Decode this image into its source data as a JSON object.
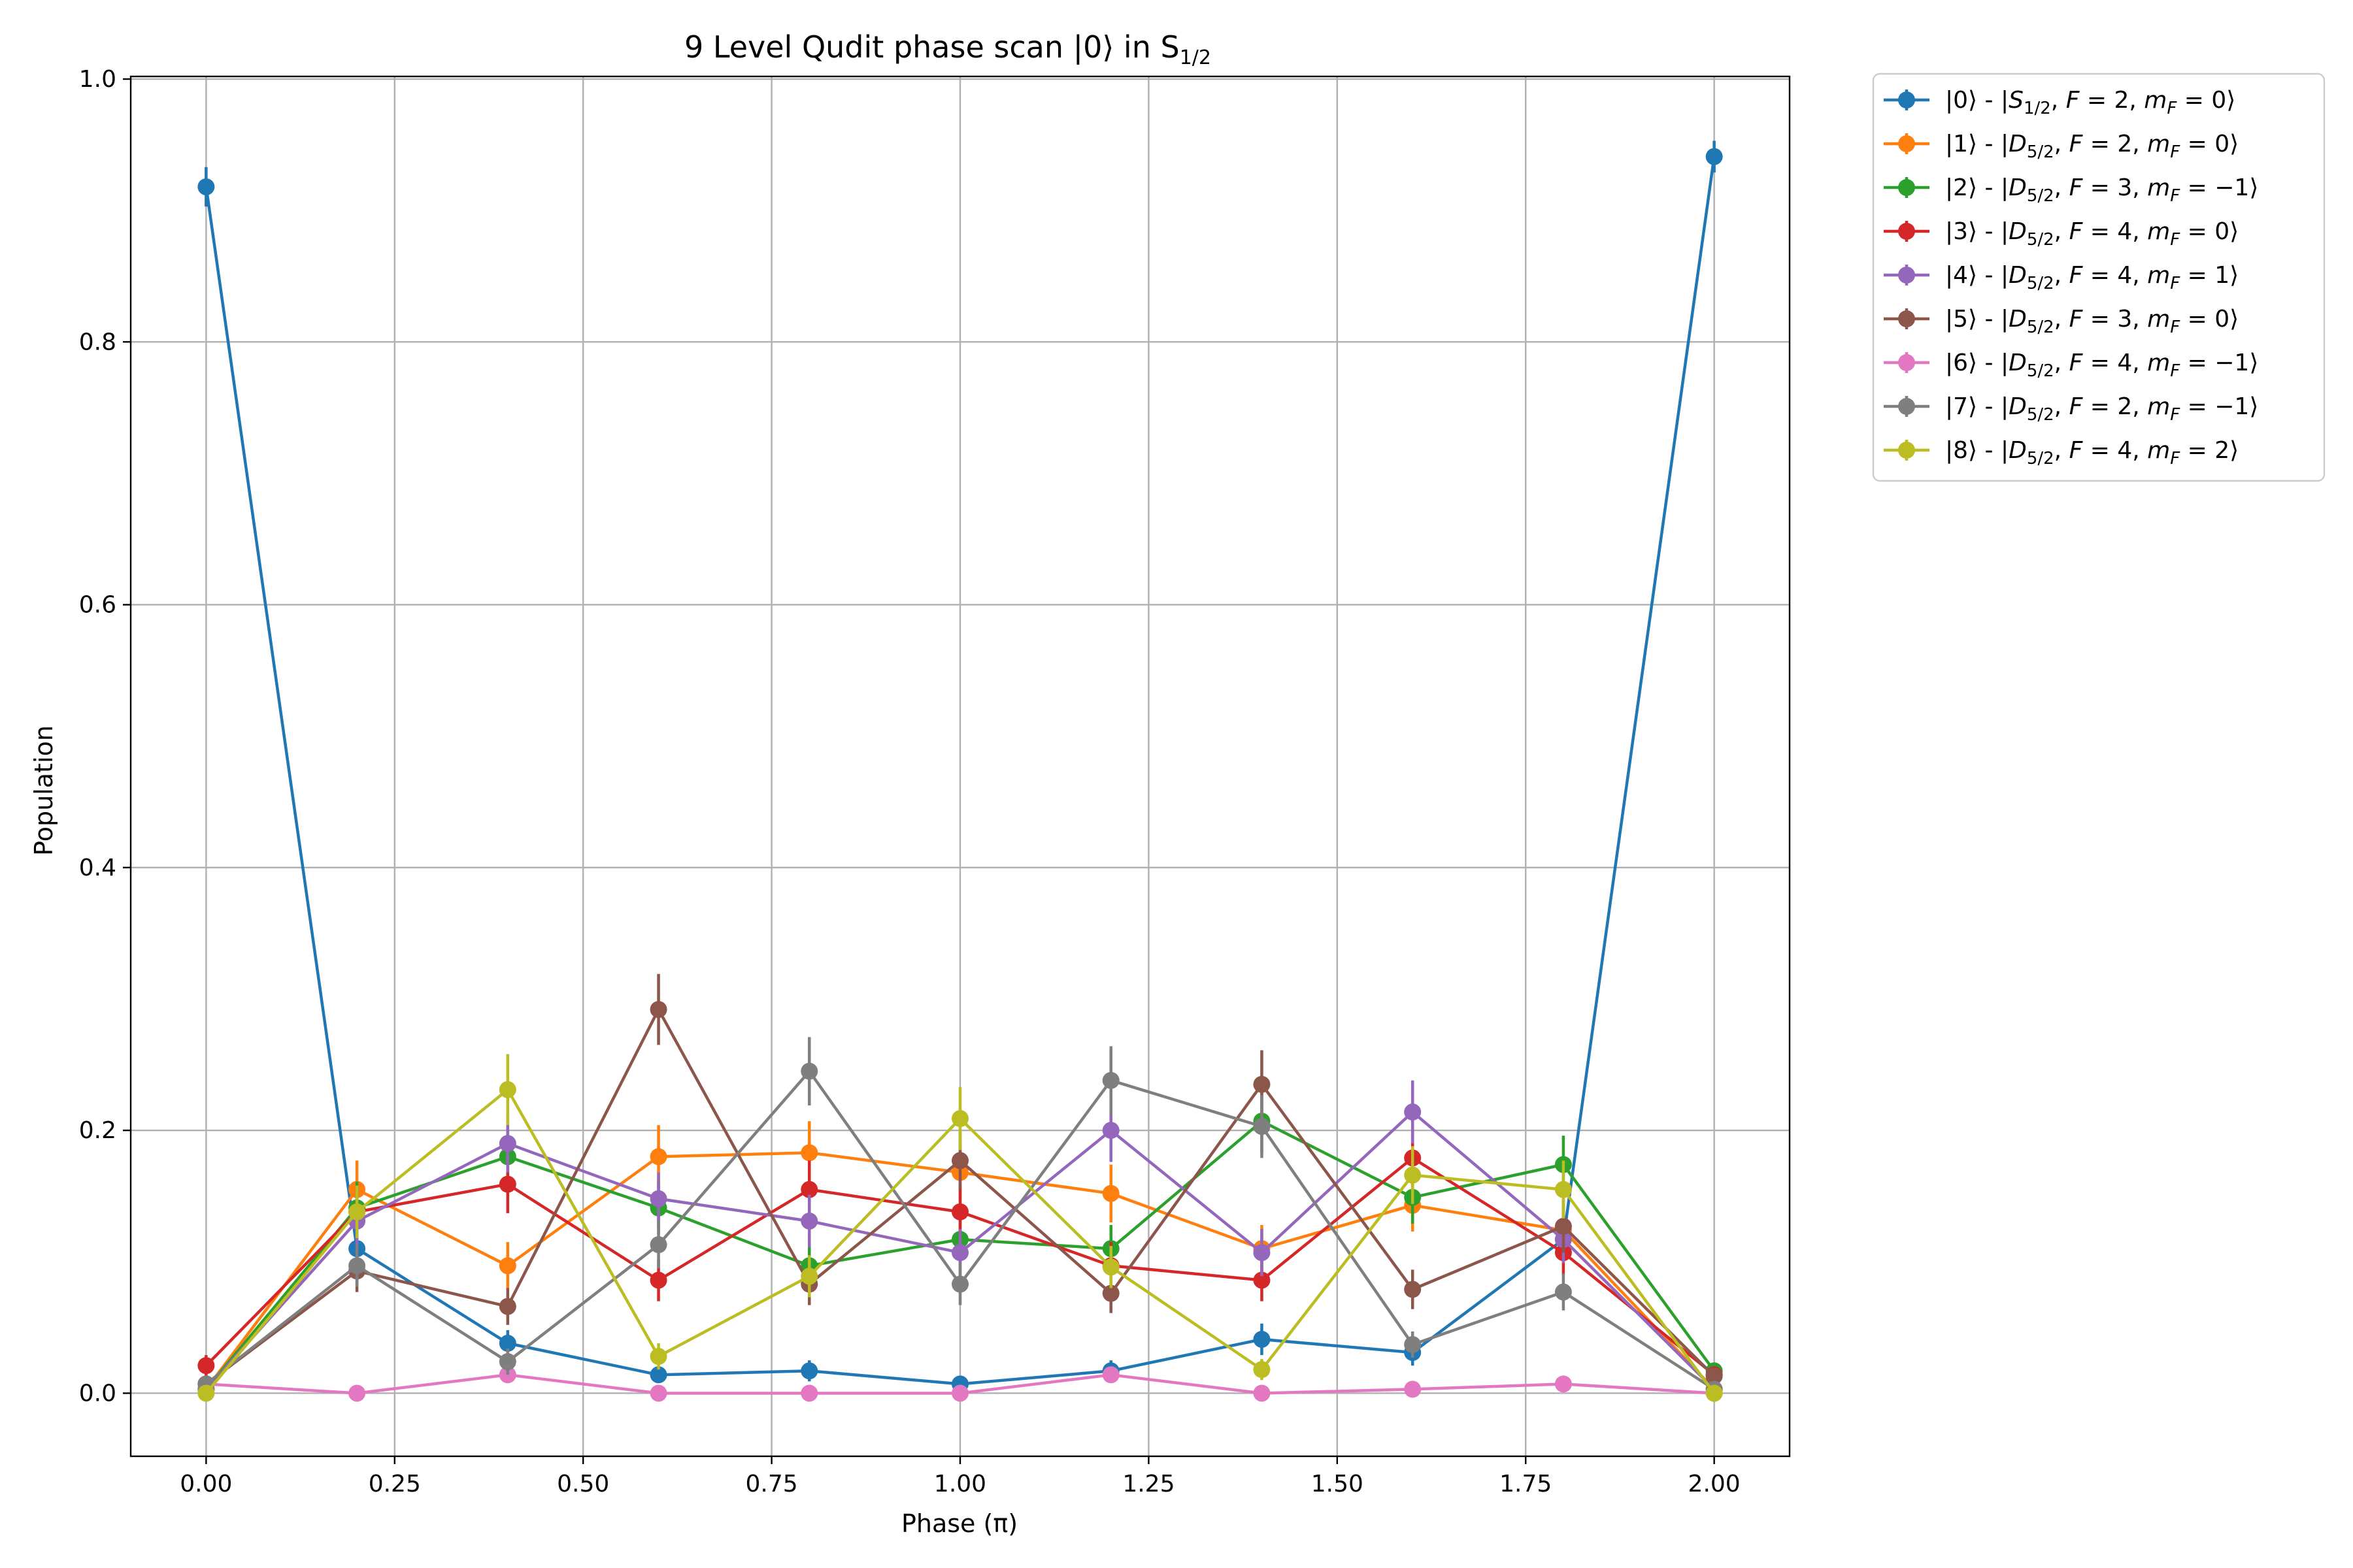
{
  "chart_data": {
    "type": "line",
    "title": "9 Level Qudit phase scan |0⟩ in S",
    "title_sub": "1/2",
    "xlabel": "Phase (π)",
    "ylabel": "Population",
    "xlim": [
      -0.1,
      2.1
    ],
    "ylim": [
      -0.048,
      1.002
    ],
    "xticks": [
      "0.00",
      "0.25",
      "0.50",
      "0.75",
      "1.00",
      "1.25",
      "1.50",
      "1.75",
      "2.00"
    ],
    "yticks": [
      "0.0",
      "0.2",
      "0.4",
      "0.6",
      "0.8",
      "1.0"
    ],
    "grid": true,
    "legend_position": "outside-top-right",
    "x": [
      0.0,
      0.2,
      0.4,
      0.6,
      0.8,
      1.0,
      1.2,
      1.4,
      1.6,
      1.8,
      2.0
    ],
    "series": [
      {
        "ket": "|0⟩ - |",
        "term": "S",
        "sub": "1/2",
        "f": "2",
        "mf": "0",
        "color": "#1f77b4",
        "values": [
          0.918,
          0.11,
          0.038,
          0.014,
          0.017,
          0.007,
          0.017,
          0.041,
          0.031,
          0.117,
          0.941
        ],
        "errors": [
          0.015,
          0.012,
          0.01,
          0.006,
          0.008,
          0.005,
          0.008,
          0.012,
          0.01,
          0.015,
          0.012
        ]
      },
      {
        "ket": "|1⟩ - |",
        "term": "D",
        "sub": "5/2",
        "f": "2",
        "mf": "0",
        "color": "#ff7f0e",
        "values": [
          0.003,
          0.155,
          0.097,
          0.18,
          0.183,
          0.168,
          0.152,
          0.11,
          0.143,
          0.124,
          0.003
        ],
        "errors": [
          0.004,
          0.022,
          0.018,
          0.024,
          0.024,
          0.022,
          0.022,
          0.018,
          0.02,
          0.02,
          0.004
        ]
      },
      {
        "ket": "|2⟩ - |",
        "term": "D",
        "sub": "5/2",
        "f": "3",
        "mf": "−1",
        "color": "#2ca02c",
        "values": [
          0.003,
          0.141,
          0.18,
          0.141,
          0.097,
          0.117,
          0.11,
          0.207,
          0.149,
          0.174,
          0.017
        ],
        "errors": [
          0.004,
          0.02,
          0.022,
          0.02,
          0.018,
          0.018,
          0.018,
          0.024,
          0.02,
          0.022,
          0.006
        ]
      },
      {
        "ket": "|3⟩ - |",
        "term": "D",
        "sub": "5/2",
        "f": "4",
        "mf": "0",
        "color": "#d62728",
        "values": [
          0.021,
          0.138,
          0.159,
          0.086,
          0.155,
          0.138,
          0.097,
          0.086,
          0.179,
          0.107,
          0.014
        ],
        "errors": [
          0.008,
          0.02,
          0.022,
          0.016,
          0.022,
          0.02,
          0.018,
          0.016,
          0.022,
          0.018,
          0.006
        ]
      },
      {
        "ket": "|4⟩ - |",
        "term": "D",
        "sub": "5/2",
        "f": "4",
        "mf": "1",
        "color": "#9467bd",
        "values": [
          0.003,
          0.131,
          0.19,
          0.148,
          0.131,
          0.107,
          0.2,
          0.107,
          0.214,
          0.117,
          0.003
        ],
        "errors": [
          0.004,
          0.02,
          0.022,
          0.02,
          0.02,
          0.018,
          0.024,
          0.018,
          0.024,
          0.018,
          0.004
        ]
      },
      {
        "ket": "|5⟩ - |",
        "term": "D",
        "sub": "5/2",
        "f": "3",
        "mf": "0",
        "color": "#8c564b",
        "values": [
          0.007,
          0.093,
          0.066,
          0.292,
          0.083,
          0.177,
          0.076,
          0.235,
          0.079,
          0.127,
          0.013
        ],
        "errors": [
          0.005,
          0.016,
          0.014,
          0.027,
          0.016,
          0.022,
          0.015,
          0.026,
          0.015,
          0.02,
          0.006
        ]
      },
      {
        "ket": "|6⟩ - |",
        "term": "D",
        "sub": "5/2",
        "f": "4",
        "mf": "−1",
        "color": "#e377c2",
        "values": [
          0.007,
          0.0,
          0.014,
          0.0,
          0.0,
          0.0,
          0.014,
          0.0,
          0.003,
          0.007,
          0.0
        ],
        "errors": [
          0.004,
          0.002,
          0.006,
          0.002,
          0.002,
          0.002,
          0.006,
          0.002,
          0.003,
          0.004,
          0.002
        ]
      },
      {
        "ket": "|7⟩ - |",
        "term": "D",
        "sub": "5/2",
        "f": "2",
        "mf": "−1",
        "color": "#7f7f7f",
        "values": [
          0.007,
          0.097,
          0.024,
          0.113,
          0.245,
          0.083,
          0.238,
          0.203,
          0.037,
          0.077,
          0.003
        ],
        "errors": [
          0.005,
          0.016,
          0.01,
          0.018,
          0.026,
          0.016,
          0.026,
          0.024,
          0.01,
          0.014,
          0.004
        ]
      },
      {
        "ket": "|8⟩ - |",
        "term": "D",
        "sub": "5/2",
        "f": "4",
        "mf": "2",
        "color": "#bcbd22",
        "values": [
          0.0,
          0.138,
          0.231,
          0.028,
          0.089,
          0.209,
          0.096,
          0.018,
          0.166,
          0.155,
          0.0
        ],
        "errors": [
          0.002,
          0.02,
          0.027,
          0.01,
          0.016,
          0.024,
          0.016,
          0.008,
          0.022,
          0.022,
          0.002
        ]
      }
    ]
  }
}
